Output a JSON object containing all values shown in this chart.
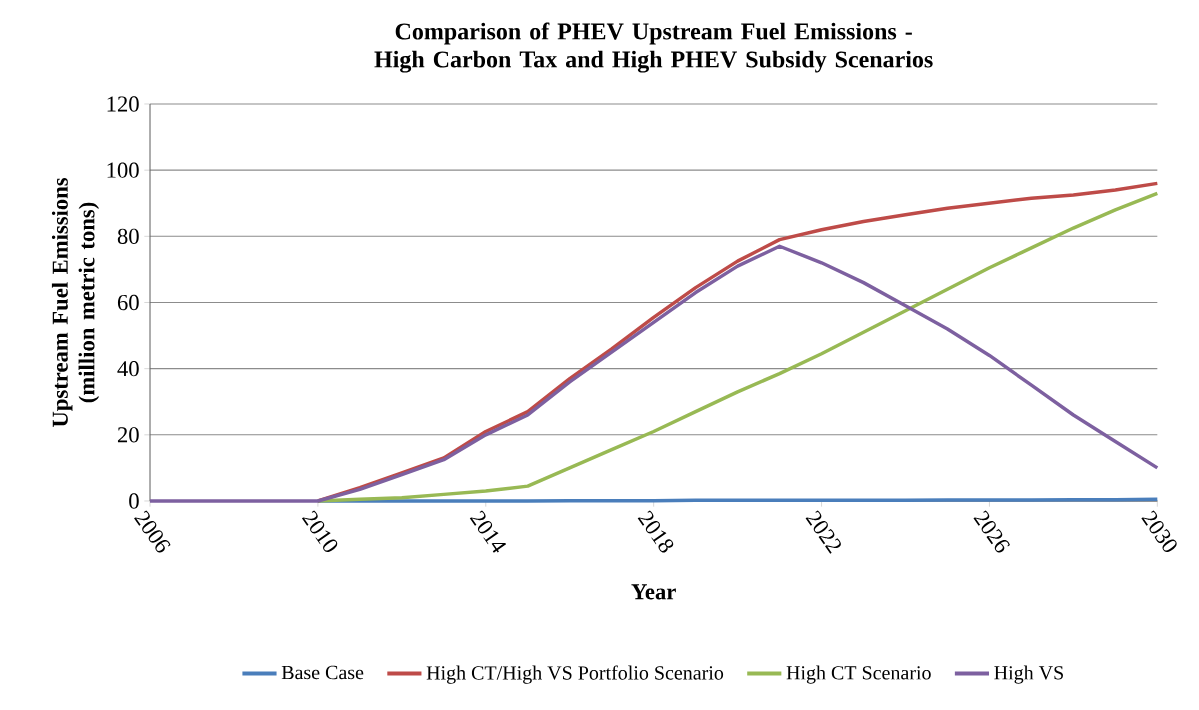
{
  "chart_data": {
    "type": "line",
    "title": "Comparison of PHEV Upstream Fuel Emissions - High Carbon Tax and High PHEV Subsidy Scenarios",
    "xlabel": "Year",
    "ylabel": "Upstream Fuel Emissions (million metric tons)",
    "x": [
      2006,
      2007,
      2008,
      2009,
      2010,
      2011,
      2012,
      2013,
      2014,
      2015,
      2016,
      2017,
      2018,
      2019,
      2020,
      2021,
      2022,
      2023,
      2024,
      2025,
      2026,
      2027,
      2028,
      2029,
      2030
    ],
    "series": [
      {
        "name": "Base Case",
        "color": "#4a7ebb",
        "values": [
          null,
          null,
          null,
          null,
          0,
          0,
          0,
          0,
          0,
          0,
          0.1,
          0.1,
          0.1,
          0.2,
          0.2,
          0.2,
          0.2,
          0.2,
          0.2,
          0.3,
          0.3,
          0.3,
          0.4,
          0.4,
          0.5
        ]
      },
      {
        "name": "High CT/High VS Portfolio Scenario",
        "color": "#be4b48",
        "values": [
          null,
          null,
          null,
          null,
          0,
          4,
          8.5,
          13,
          21,
          27,
          37,
          46,
          55.5,
          64.5,
          72.5,
          79,
          82,
          84.5,
          86.5,
          88.5,
          90,
          91.5,
          92.5,
          94,
          96
        ]
      },
      {
        "name": "High CT Scenario",
        "color": "#98b954",
        "values": [
          null,
          null,
          null,
          null,
          0,
          0.5,
          1,
          2,
          3,
          4.5,
          10,
          15.5,
          21,
          27,
          33,
          38.5,
          44.5,
          51,
          57.5,
          64,
          70.5,
          76.5,
          82.5,
          88,
          93
        ]
      },
      {
        "name": "High VS",
        "color": "#7d60a0",
        "values": [
          0,
          0,
          0,
          0,
          0,
          3.5,
          8,
          12.5,
          20,
          26,
          36,
          45,
          54,
          63,
          71,
          77,
          72,
          66,
          59,
          52,
          44,
          35,
          26,
          18,
          10
        ]
      }
    ],
    "xlim": [
      2006,
      2030
    ],
    "xticks": [
      2006,
      2010,
      2014,
      2018,
      2022,
      2026,
      2030
    ],
    "ylim": [
      0,
      120
    ],
    "yticks": [
      0,
      20,
      40,
      60,
      80,
      100,
      120
    ],
    "grid": "y",
    "legend": "bottom"
  }
}
